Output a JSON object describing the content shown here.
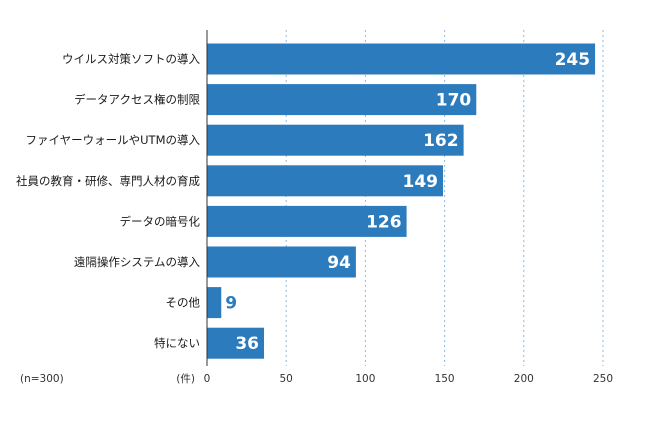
{
  "chart_data": {
    "type": "bar",
    "orientation": "horizontal",
    "categories": [
      "ウイルス対策ソフトの導入",
      "データアクセス権の制限",
      "ファイヤーウォールやUTMの導入",
      "社員の教育・研修、専門人材の育成",
      "データの暗号化",
      "遠隔操作システムの導入",
      "その他",
      "特にない"
    ],
    "values": [
      245,
      170,
      162,
      149,
      126,
      94,
      9,
      36
    ],
    "xlim": [
      0,
      250
    ],
    "xticks": [
      0,
      50,
      100,
      150,
      200,
      250
    ],
    "sample_note": "(n=300)",
    "unit_label": "(件)",
    "bar_color": "#2b7bbd",
    "grid": "vertical dotted"
  }
}
